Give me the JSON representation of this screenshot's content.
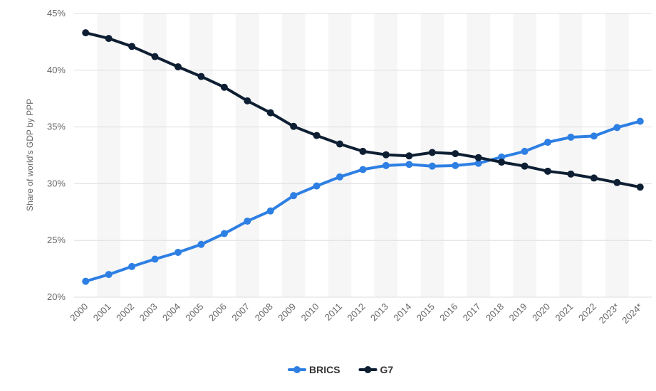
{
  "chart_data": {
    "type": "line",
    "ylabel": "Share of world's GDP by PPP",
    "ylim": [
      20,
      45
    ],
    "yticks": [
      20,
      25,
      30,
      35,
      40,
      45
    ],
    "ytick_labels": [
      "20%",
      "25%",
      "30%",
      "35%",
      "40%",
      "45%"
    ],
    "categories": [
      "2000",
      "2001",
      "2002",
      "2003",
      "2004",
      "2005",
      "2006",
      "2007",
      "2008",
      "2009",
      "2010",
      "2011",
      "2012",
      "2013",
      "2014",
      "2015",
      "2016",
      "2017",
      "2018",
      "2019",
      "2020",
      "2021",
      "2022",
      "2023*",
      "2024*"
    ],
    "grid": true,
    "legend_position": "bottom-center",
    "series": [
      {
        "name": "BRICS",
        "color": "#2d7fe3",
        "values": [
          21.4,
          22.0,
          22.7,
          23.35,
          23.95,
          24.65,
          25.6,
          26.7,
          27.6,
          28.95,
          29.8,
          30.6,
          31.25,
          31.6,
          31.7,
          31.55,
          31.6,
          31.8,
          32.35,
          32.85,
          33.65,
          34.1,
          34.2,
          34.95,
          35.5
        ]
      },
      {
        "name": "G7",
        "color": "#0e1f33",
        "values": [
          43.3,
          42.8,
          42.1,
          41.2,
          40.3,
          39.45,
          38.5,
          37.3,
          36.25,
          35.05,
          34.25,
          33.5,
          32.85,
          32.55,
          32.45,
          32.75,
          32.65,
          32.3,
          31.9,
          31.55,
          31.1,
          30.85,
          30.5,
          30.1,
          29.7
        ]
      }
    ]
  }
}
